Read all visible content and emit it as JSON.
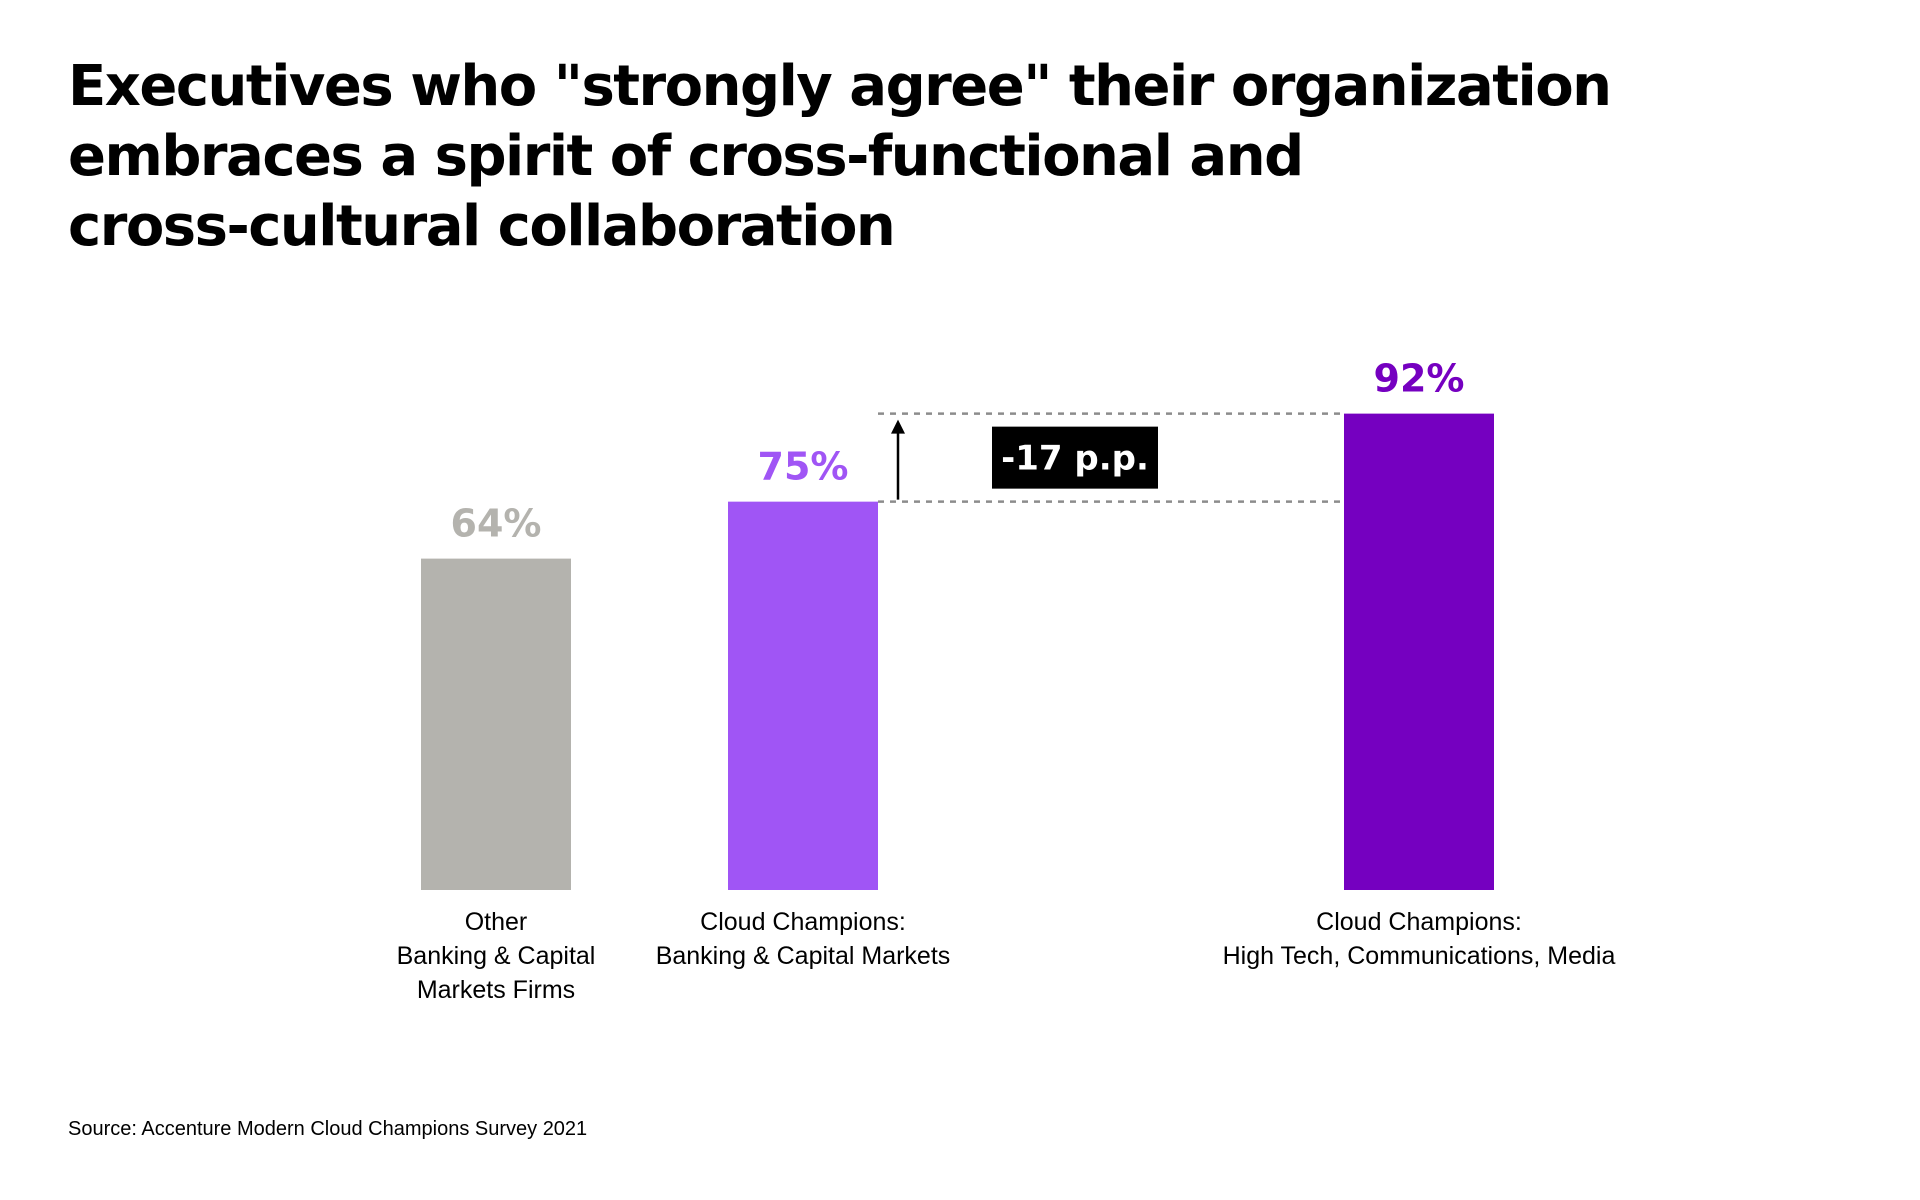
{
  "title": "Executives who \"strongly agree\" their organization\nembraces a spirit of cross-functional and\ncross-cultural collaboration",
  "source": "Source: Accenture Modern Cloud Champions Survey 2021",
  "chart_data": {
    "type": "bar",
    "title": "Executives who \"strongly agree\" their organization embraces a spirit of cross-functional and cross-cultural collaboration",
    "categories": [
      [
        "Other",
        "Banking & Capital",
        "Markets Firms"
      ],
      [
        "Cloud Champions:",
        "Banking & Capital Markets"
      ],
      [
        "Cloud Champions:",
        "High Tech, Communications, Media"
      ]
    ],
    "values": [
      64,
      75,
      92
    ],
    "value_labels": [
      "64%",
      "75%",
      "92%"
    ],
    "unit": "%",
    "colors": [
      "#b4b3ae",
      "#a055f5",
      "#7500c0"
    ],
    "label_colors": [
      "#b4b3ae",
      "#a055f5",
      "#7500c0"
    ],
    "ylim": [
      0,
      100
    ],
    "grid": false,
    "legend": "none",
    "annotation": {
      "text": "-17 p.p.",
      "from_value": 75,
      "to_value": 92
    }
  }
}
